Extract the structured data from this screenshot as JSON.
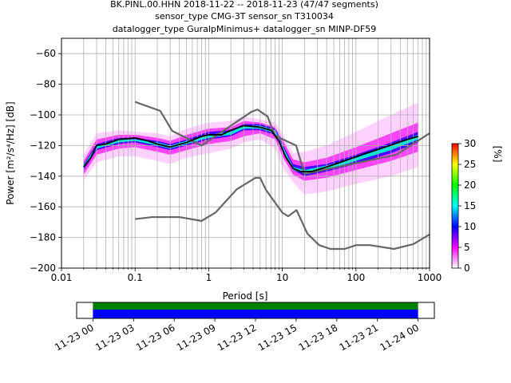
{
  "title_lines": [
    "BK.PINL.00.HHN   2018-11-22 -- 2018-11-23  (47/47 segments)",
    "sensor_type CMG-3T sensor_sn T310034",
    "datalogger_type GuralpMinimus+ datalogger_sn MINP-DF59"
  ],
  "chart_data": {
    "type": "heatmap",
    "xlabel": "Period [s]",
    "ylabel": "Power [m²/s⁴/Hz] [dB]",
    "xscale": "log",
    "xlim": [
      0.01,
      1000
    ],
    "ylim": [
      -200,
      -50
    ],
    "xticks": [
      0.01,
      0.1,
      1,
      10,
      100,
      1000
    ],
    "xtick_labels": [
      "0.01",
      "0.1",
      "1",
      "10",
      "100",
      "1000"
    ],
    "yticks": [
      -200,
      -180,
      -160,
      -140,
      -120,
      -100,
      -80,
      -60
    ],
    "grid": true,
    "colorbar": {
      "label": "[%]",
      "range": [
        0,
        30
      ],
      "ticks": [
        0,
        5,
        10,
        15,
        20,
        25,
        30
      ],
      "colors": [
        "#ffffff",
        "#ff00ff",
        "#0000ff",
        "#00ffff",
        "#00ff00",
        "#ffff00",
        "#ff0000"
      ]
    },
    "series": [
      {
        "name": "",
        "role": "low noise model",
        "color": "#666666",
        "x": [
          0.1,
          0.17,
          0.4,
          0.8,
          1.24,
          2.4,
          4.3,
          5.0,
          6.0,
          10.0,
          12.0,
          15.6,
          21.9,
          31.6,
          45.0,
          70.0,
          101.0,
          154.0,
          328.0,
          600.0,
          1000.0
        ],
        "y": [
          -168,
          -166.7,
          -166.7,
          -169.2,
          -163.7,
          -148.6,
          -141.1,
          -141.1,
          -149.0,
          -163.8,
          -166.2,
          -162.1,
          -177.5,
          -185.0,
          -187.5,
          -187.5,
          -185.0,
          -185.0,
          -187.5,
          -184.4,
          -178.0
        ]
      },
      {
        "name": "",
        "role": "high noise model",
        "color": "#666666",
        "x": [
          0.1,
          0.22,
          0.32,
          0.8,
          3.8,
          4.6,
          6.3,
          7.9,
          15.4,
          20.0,
          354.8,
          1000.0
        ],
        "y": [
          -91.5,
          -97.4,
          -110.5,
          -120.0,
          -98.0,
          -96.5,
          -101.0,
          -113.5,
          -120.0,
          -138.5,
          -126.0,
          -112.0
        ]
      },
      {
        "name": "",
        "role": "mode",
        "color": "#000000",
        "x": [
          0.02,
          0.025,
          0.03,
          0.04,
          0.06,
          0.1,
          0.15,
          0.2,
          0.3,
          0.5,
          0.8,
          1.0,
          1.5,
          2.0,
          3.0,
          5.0,
          7.0,
          9.0,
          11.0,
          14.0,
          18.0,
          25.0,
          40.0,
          70.0,
          120.0,
          250.0,
          500.0,
          700.0
        ],
        "y": [
          -134,
          -128,
          -120,
          -119,
          -116,
          -115,
          -117,
          -119,
          -121,
          -118,
          -114,
          -113,
          -113,
          -110,
          -107,
          -108,
          -110,
          -117,
          -127,
          -135,
          -137,
          -137,
          -134,
          -130,
          -126,
          -121,
          -116,
          -114
        ]
      }
    ],
    "density_bands": [
      {
        "x": [
          0.02,
          0.03,
          0.06,
          0.1,
          0.2,
          0.3,
          0.5,
          1.0,
          2.0,
          3.0,
          5.0,
          8.0,
          10.0,
          14.0,
          20.0,
          40.0,
          100.0,
          300.0,
          700.0
        ],
        "upper": [
          -126,
          -112,
          -110,
          -111,
          -112,
          -114,
          -109,
          -105,
          -104,
          -101,
          -103,
          -105,
          -112,
          -125,
          -124,
          -120,
          -111,
          -100,
          -92
        ],
        "lower": [
          -143,
          -131,
          -127,
          -127,
          -130,
          -132,
          -128,
          -125,
          -122,
          -118,
          -116,
          -122,
          -134,
          -144,
          -152,
          -150,
          -145,
          -140,
          -134
        ],
        "percent": 1
      },
      {
        "x": [
          0.02,
          0.03,
          0.06,
          0.1,
          0.2,
          0.3,
          0.5,
          1.0,
          2.0,
          3.0,
          5.0,
          8.0,
          10.0,
          14.0,
          20.0,
          40.0,
          100.0,
          300.0,
          700.0
        ],
        "upper": [
          -130,
          -116,
          -113,
          -113,
          -115,
          -117,
          -113,
          -109,
          -108,
          -104,
          -105,
          -108,
          -116,
          -129,
          -131,
          -128,
          -121,
          -112,
          -105
        ],
        "lower": [
          -139,
          -126,
          -122,
          -121,
          -124,
          -126,
          -123,
          -119,
          -117,
          -114,
          -112,
          -116,
          -127,
          -139,
          -143,
          -141,
          -136,
          -130,
          -124
        ],
        "percent": 4
      },
      {
        "x": [
          0.02,
          0.03,
          0.06,
          0.1,
          0.2,
          0.3,
          0.5,
          1.0,
          2.0,
          3.0,
          5.0,
          8.0,
          10.0,
          14.0,
          20.0,
          40.0,
          100.0,
          300.0,
          700.0
        ],
        "upper": [
          -132,
          -119,
          -115,
          -115,
          -117,
          -119,
          -116,
          -111,
          -110,
          -106,
          -106,
          -109,
          -119,
          -132,
          -134,
          -132,
          -126,
          -118,
          -111
        ],
        "lower": [
          -136,
          -123,
          -119,
          -118,
          -121,
          -123,
          -120,
          -116,
          -114,
          -110,
          -110,
          -113,
          -123,
          -136,
          -140,
          -137,
          -132,
          -125,
          -118
        ],
        "percent": 9
      },
      {
        "x": [
          0.02,
          0.03,
          0.06,
          0.1,
          0.2,
          0.3,
          0.5,
          1.0,
          2.0,
          3.0,
          5.0,
          8.0,
          10.0,
          14.0,
          20.0,
          40.0,
          100.0,
          300.0,
          700.0
        ],
        "upper": [
          -133,
          -120,
          -116,
          -116,
          -118,
          -120,
          -117,
          -113,
          -111,
          -107,
          -107,
          -110,
          -120,
          -134,
          -136,
          -133,
          -128,
          -120,
          -113
        ],
        "lower": [
          -135,
          -122,
          -118,
          -117,
          -120,
          -122,
          -119,
          -115,
          -113,
          -109,
          -109,
          -112,
          -122,
          -136,
          -138,
          -136,
          -130,
          -123,
          -116
        ],
        "percent": 16
      }
    ]
  },
  "timeline": {
    "tick_labels": [
      "11-23 00",
      "11-23 03",
      "11-23 06",
      "11-23 09",
      "11-23 12",
      "11-23 15",
      "11-23 18",
      "11-23 21",
      "11-24 00"
    ],
    "tick_hours": [
      0,
      3,
      6,
      9,
      12,
      15,
      18,
      21,
      24
    ],
    "range_hours": [
      -1.2,
      25.2
    ],
    "coverage_hours": [
      0,
      24
    ],
    "bar_colors": [
      "#008000",
      "#0000ff"
    ]
  }
}
